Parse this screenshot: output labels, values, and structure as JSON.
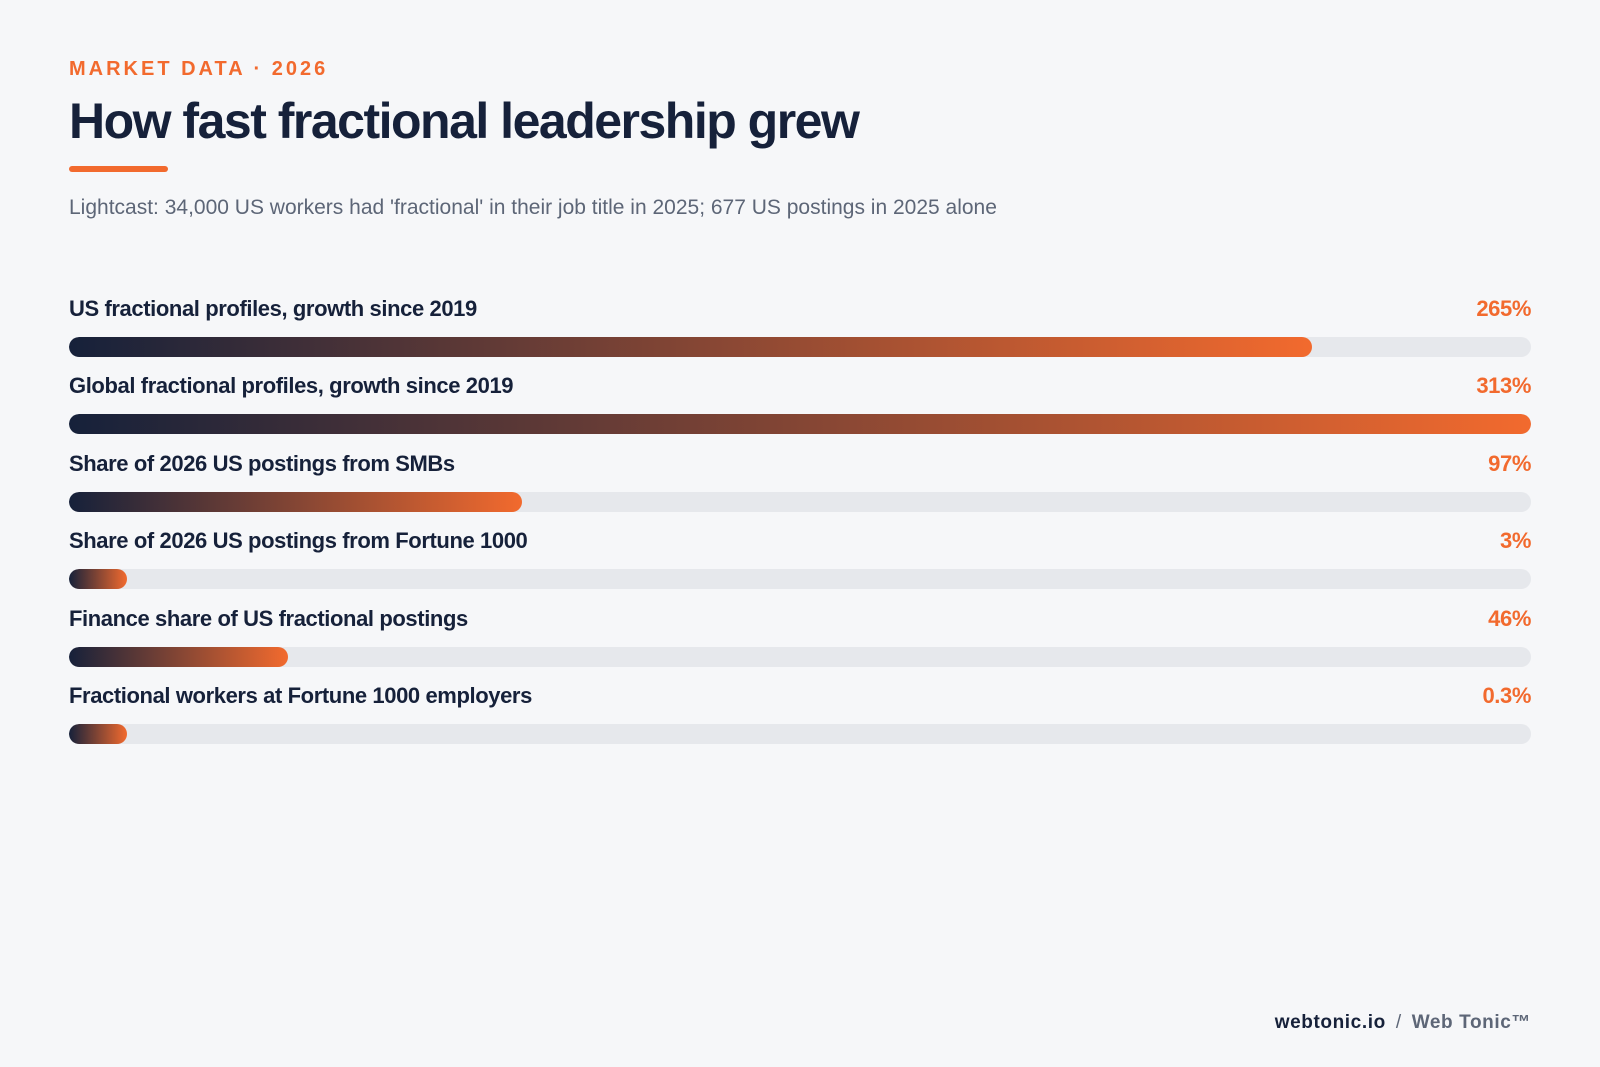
{
  "header": {
    "eyebrow": "MARKET DATA · 2026",
    "title": "How fast fractional leadership grew",
    "subtitle": "Lightcast: 34,000 US workers had 'fractional' in their job title in 2025; 677 US postings in 2025 alone"
  },
  "colors": {
    "accent": "#f26a2e",
    "navy": "#16213a",
    "track": "#e6e8ec",
    "background": "#f6f7f9"
  },
  "chart_data": {
    "type": "bar",
    "orientation": "horizontal",
    "title": "How fast fractional leadership grew",
    "subtitle": "Lightcast: 34,000 US workers had 'fractional' in their job title in 2025; 677 US postings in 2025 alone",
    "categories": [
      "US fractional profiles, growth since 2019",
      "Global fractional profiles, growth since 2019",
      "Share of 2026 US postings from SMBs",
      "Share of 2026 US postings from Fortune 1000",
      "Finance share of US fractional postings",
      "Fractional workers at Fortune 1000 employers"
    ],
    "value_labels": [
      "265%",
      "313%",
      "97%",
      "3%",
      "46%",
      "0.3%"
    ],
    "values": [
      265,
      313,
      97,
      3,
      46,
      0.3
    ],
    "bar_fill_fraction": [
      0.85,
      1.0,
      0.31,
      0.04,
      0.15,
      0.04
    ],
    "grid": false,
    "legend": "none"
  },
  "footer": {
    "site": "webtonic.io",
    "separator": "/",
    "brand": "Web Tonic™"
  }
}
